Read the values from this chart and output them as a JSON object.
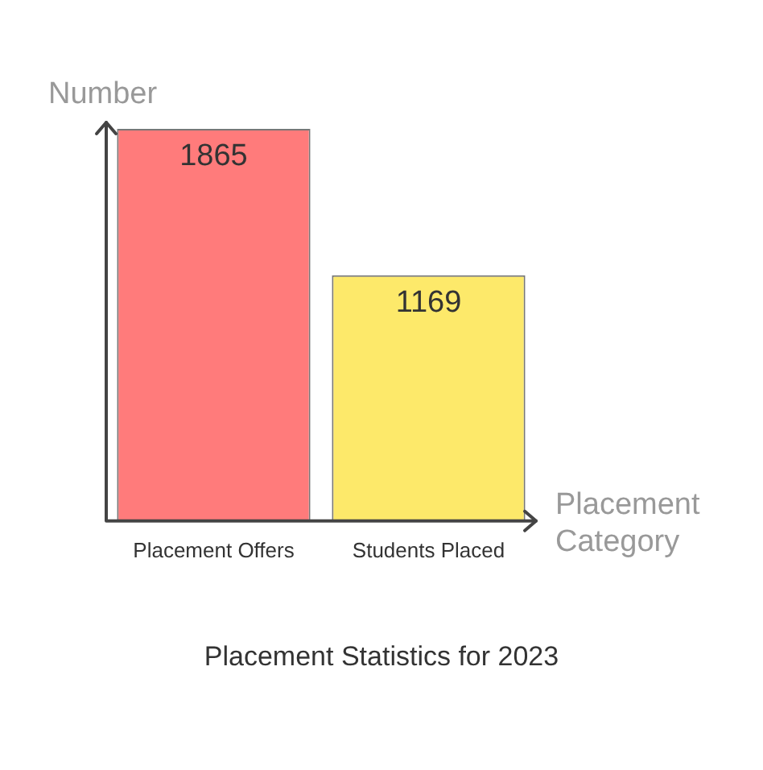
{
  "chart_data": {
    "type": "bar",
    "title": "Placement Statistics for 2023",
    "xlabel": "Placement Category",
    "ylabel": "Number",
    "categories": [
      "Placement Offers",
      "Students Placed"
    ],
    "values": [
      1865,
      1169
    ],
    "colors": [
      "#ff7b7b",
      "#fde96a"
    ],
    "data_labels": true,
    "grid": false,
    "legend": false
  }
}
